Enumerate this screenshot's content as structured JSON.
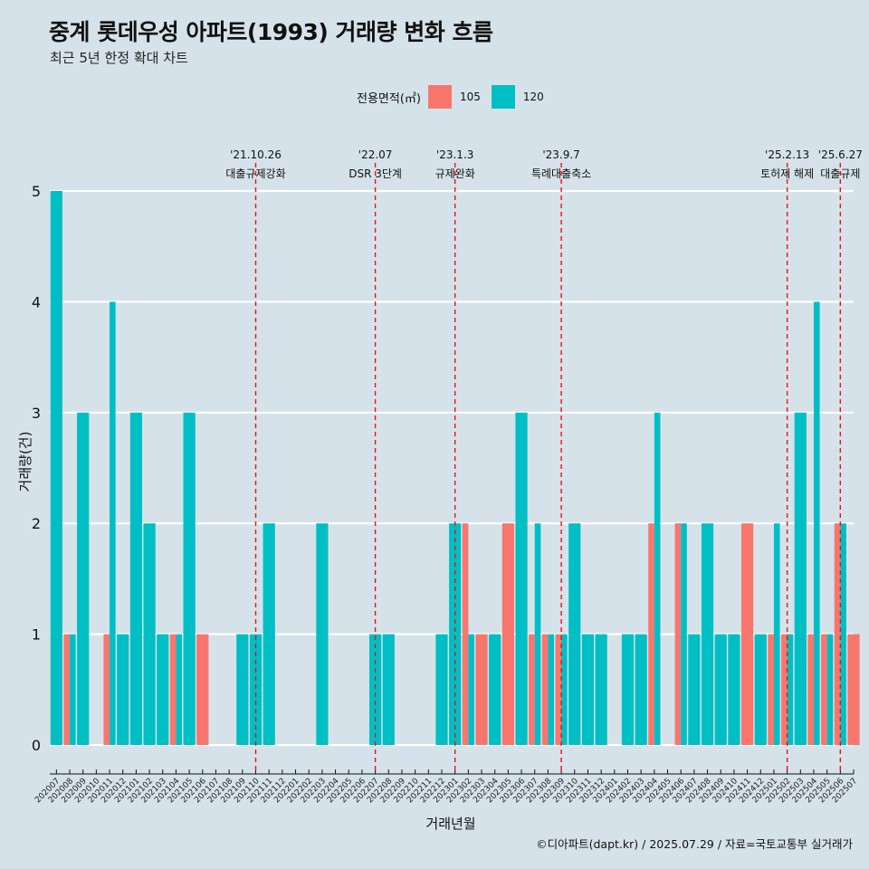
{
  "title": "중계 롯데우성 아파트(1993) 거래량 변화 흐름",
  "subtitle": "최근 5년 한정 확대 차트",
  "legend": {
    "title": "전용면적(㎡)",
    "items": [
      {
        "label": "105",
        "color": "#f8766d"
      },
      {
        "label": "120",
        "color": "#00bfc4"
      }
    ]
  },
  "caption": "©디아파트(dapt.kr) / 2025.07.29 / 자료=국토교통부 실거래가",
  "chart_data": {
    "type": "bar",
    "stacked": false,
    "xlabel": "거래년월",
    "ylabel": "거래량(건)",
    "ylim": [
      0,
      5
    ],
    "yticks": [
      0,
      1,
      2,
      3,
      4,
      5
    ],
    "grid": "horizontal",
    "categories": [
      "202007",
      "202008",
      "202009",
      "202010",
      "202011",
      "202012",
      "202101",
      "202102",
      "202103",
      "202104",
      "202105",
      "202106",
      "202107",
      "202108",
      "202109",
      "202110",
      "202111",
      "202112",
      "202201",
      "202202",
      "202203",
      "202204",
      "202205",
      "202206",
      "202207",
      "202208",
      "202209",
      "202210",
      "202211",
      "202212",
      "202301",
      "202302",
      "202303",
      "202304",
      "202305",
      "202306",
      "202307",
      "202308",
      "202309",
      "202310",
      "202311",
      "202312",
      "202401",
      "202402",
      "202403",
      "202404",
      "202405",
      "202406",
      "202407",
      "202408",
      "202409",
      "202410",
      "202411",
      "202412",
      "202501",
      "202502",
      "202503",
      "202504",
      "202505",
      "202506",
      "202507"
    ],
    "series": [
      {
        "name": "105",
        "color": "#f8766d",
        "values": [
          0,
          1,
          0,
          0,
          1,
          0,
          0,
          0,
          0,
          1,
          0,
          1,
          0,
          0,
          0,
          0,
          0,
          0,
          0,
          0,
          0,
          0,
          0,
          0,
          0,
          0,
          0,
          0,
          0,
          0,
          0,
          2,
          1,
          0,
          2,
          0,
          1,
          1,
          1,
          0,
          0,
          0,
          0,
          0,
          0,
          2,
          0,
          2,
          0,
          0,
          0,
          0,
          2,
          0,
          1,
          1,
          0,
          1,
          1,
          2,
          1
        ]
      },
      {
        "name": "120",
        "color": "#00bfc4",
        "values": [
          5,
          1,
          3,
          0,
          4,
          1,
          3,
          2,
          1,
          1,
          3,
          0,
          0,
          0,
          1,
          1,
          2,
          0,
          0,
          0,
          2,
          0,
          0,
          0,
          1,
          1,
          0,
          0,
          0,
          1,
          2,
          1,
          0,
          1,
          0,
          3,
          2,
          1,
          1,
          2,
          1,
          1,
          0,
          1,
          1,
          3,
          0,
          2,
          1,
          2,
          1,
          1,
          0,
          1,
          2,
          1,
          3,
          4,
          1,
          2,
          0
        ]
      }
    ],
    "annotations": [
      {
        "x": "202110",
        "date": "'21.10.26",
        "label": "대출규제강화"
      },
      {
        "x": "202207",
        "date": "'22.07",
        "label": "DSR 3단계"
      },
      {
        "x": "202301",
        "date": "'23.1.3",
        "label": "규제완화"
      },
      {
        "x": "202309",
        "date": "'23.9.7",
        "label": "특례대출축소"
      },
      {
        "x": "202502",
        "date": "'25.2.13",
        "label": "토허제 해제"
      },
      {
        "x": "202506",
        "date": "'25.6.27",
        "label": "대출규제"
      }
    ]
  }
}
